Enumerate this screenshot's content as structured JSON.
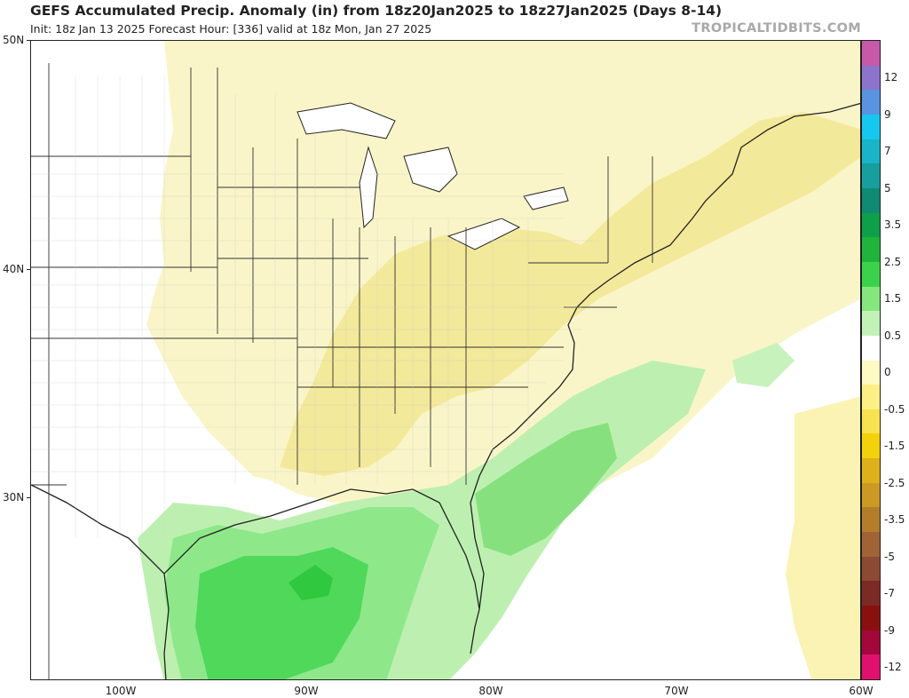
{
  "header": {
    "title": "GEFS Accumulated Precip. Anomaly (in) from 18z20Jan2025 to 18z27Jan2025 (Days 8-14)",
    "subtitle": "Init: 18z Jan 13 2025   Forecast Hour: [336]   valid at 18z Mon, Jan 27 2025",
    "brand": "TROPICALTIDBITS.COM"
  },
  "axes": {
    "lat_labels": [
      "50N",
      "40N",
      "30N"
    ],
    "lon_labels": [
      "100W",
      "90W",
      "80W",
      "70W",
      "60W"
    ]
  },
  "colorbar": {
    "labels": [
      "12",
      "9",
      "7",
      "5",
      "3.5",
      "2.5",
      "1.5",
      "0.5",
      "0",
      "-0.5",
      "-1.5",
      "-2.5",
      "-3.5",
      "-5",
      "-7",
      "-9",
      "-12"
    ],
    "colors": [
      "#c65aa9",
      "#8c73cc",
      "#5a93e0",
      "#16c7f0",
      "#19b4c8",
      "#169f9e",
      "#108a72",
      "#0e9f4a",
      "#20b43c",
      "#3ad24a",
      "#86e67e",
      "#c2f2b8",
      "#ffffff",
      "#fff9c4",
      "#fbef86",
      "#f7e34f",
      "#f3d20c",
      "#deb11a",
      "#cc9a22",
      "#b47d2b",
      "#a06336",
      "#8c4a33",
      "#7b2a26",
      "#8a1010",
      "#a2083a",
      "#e0116e"
    ]
  },
  "map_regions": {
    "wet_anomaly_color": "#7de07a",
    "dry_anomaly_color": "#f7eea0"
  }
}
